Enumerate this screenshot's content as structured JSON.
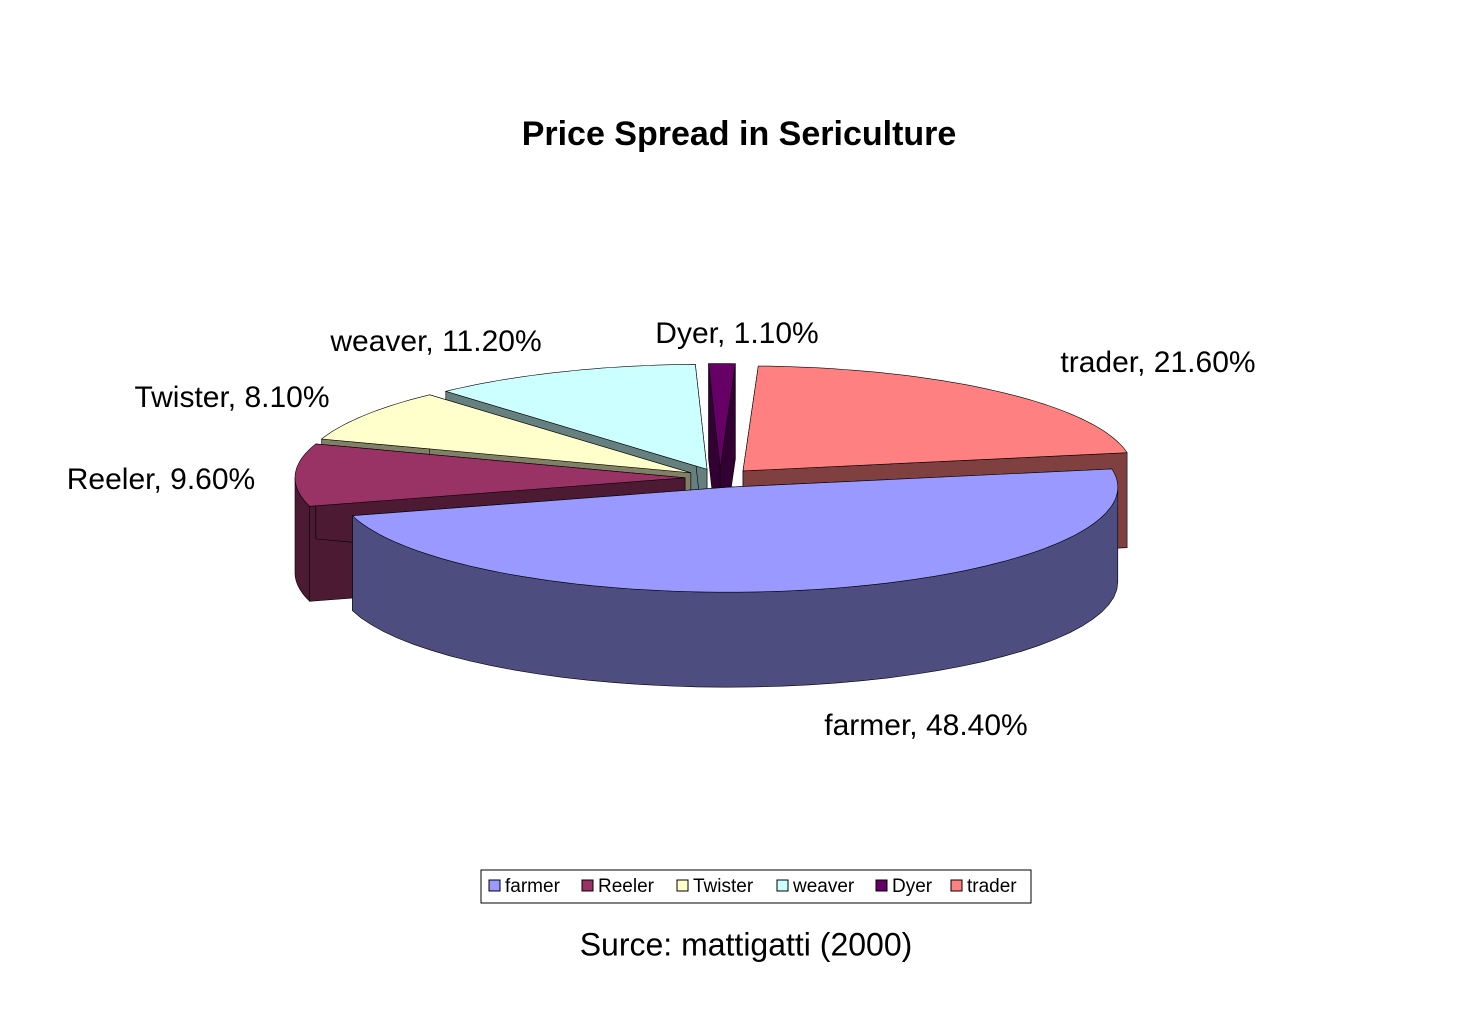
{
  "chart_data": {
    "type": "pie3d",
    "title": "Price Spread in Sericulture",
    "categories": [
      "farmer",
      "Reeler",
      "Twister",
      "weaver",
      "Dyer",
      "trader"
    ],
    "values": [
      48.4,
      9.6,
      8.1,
      11.2,
      1.1,
      21.6
    ],
    "value_labels": [
      "farmer, 48.40%",
      "Reeler, 9.60%",
      "Twister, 8.10%",
      "weaver, 11.20%",
      "Dyer, 1.10%",
      "trader, 21.60%"
    ],
    "colors": [
      "#9999ff",
      "#993366",
      "#ffffcc",
      "#ccffff",
      "#660066",
      "#ff8080"
    ],
    "legend": "bottom",
    "caption": "Surce: mattigatti (2000)"
  }
}
